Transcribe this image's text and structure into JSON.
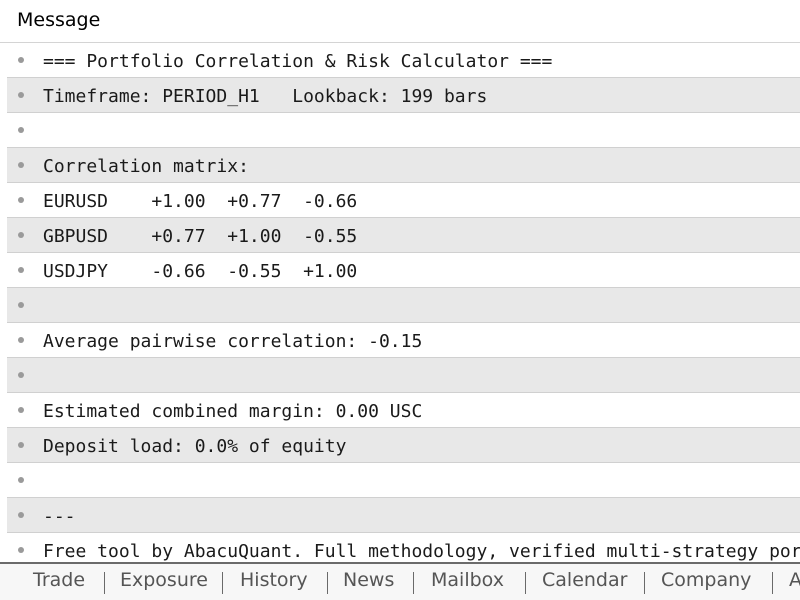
{
  "header": {
    "title": "Message"
  },
  "log": {
    "rows": [
      "=== Portfolio Correlation & Risk Calculator ===",
      "Timeframe: PERIOD_H1   Lookback: 199 bars",
      "",
      "Correlation matrix:",
      "EURUSD    +1.00  +0.77  -0.66",
      "GBPUSD    +0.77  +1.00  -0.55",
      "USDJPY    -0.66  -0.55  +1.00",
      "",
      "Average pairwise correlation: -0.15",
      "",
      "Estimated combined margin: 0.00 USC",
      "Deposit load: 0.0% of equity",
      "",
      "---",
      "Free tool by AbacuQuant. Full methodology, verified multi-strategy portfolios"
    ]
  },
  "tabs": [
    "Trade",
    "Exposure",
    "History",
    "News",
    "Mailbox",
    "Calendar",
    "Company",
    "A"
  ]
}
